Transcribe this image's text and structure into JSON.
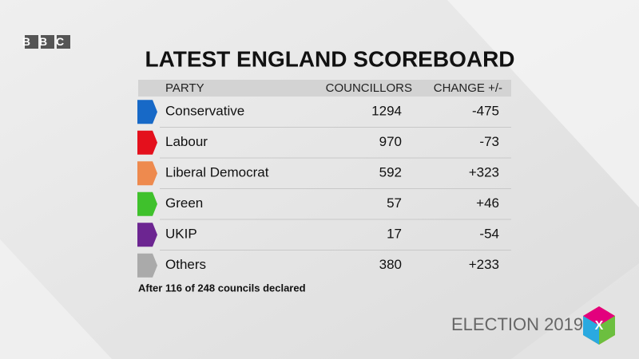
{
  "logo": "BBC",
  "title": "LATEST ENGLAND SCOREBOARD",
  "table": {
    "columns": [
      "PARTY",
      "COUNCILLORS",
      "CHANGE +/-"
    ],
    "rows": [
      {
        "party": "Conservative",
        "councillors": "1294",
        "change": "-475",
        "color": "#1769c7"
      },
      {
        "party": "Labour",
        "councillors": "970",
        "change": "-73",
        "color": "#e4101c"
      },
      {
        "party": "Liberal Democrat",
        "councillors": "592",
        "change": "+323",
        "color": "#ee8a4e"
      },
      {
        "party": "Green",
        "councillors": "57",
        "change": "+46",
        "color": "#3fc12c"
      },
      {
        "party": "UKIP",
        "councillors": "17",
        "change": "-54",
        "color": "#6c2591"
      },
      {
        "party": "Others",
        "councillors": "380",
        "change": "+233",
        "color": "#aaaaaa"
      }
    ]
  },
  "footnote": "After 116 of 248 councils declared",
  "branding": {
    "label": "ELECTION 2019",
    "icon": "X"
  }
}
